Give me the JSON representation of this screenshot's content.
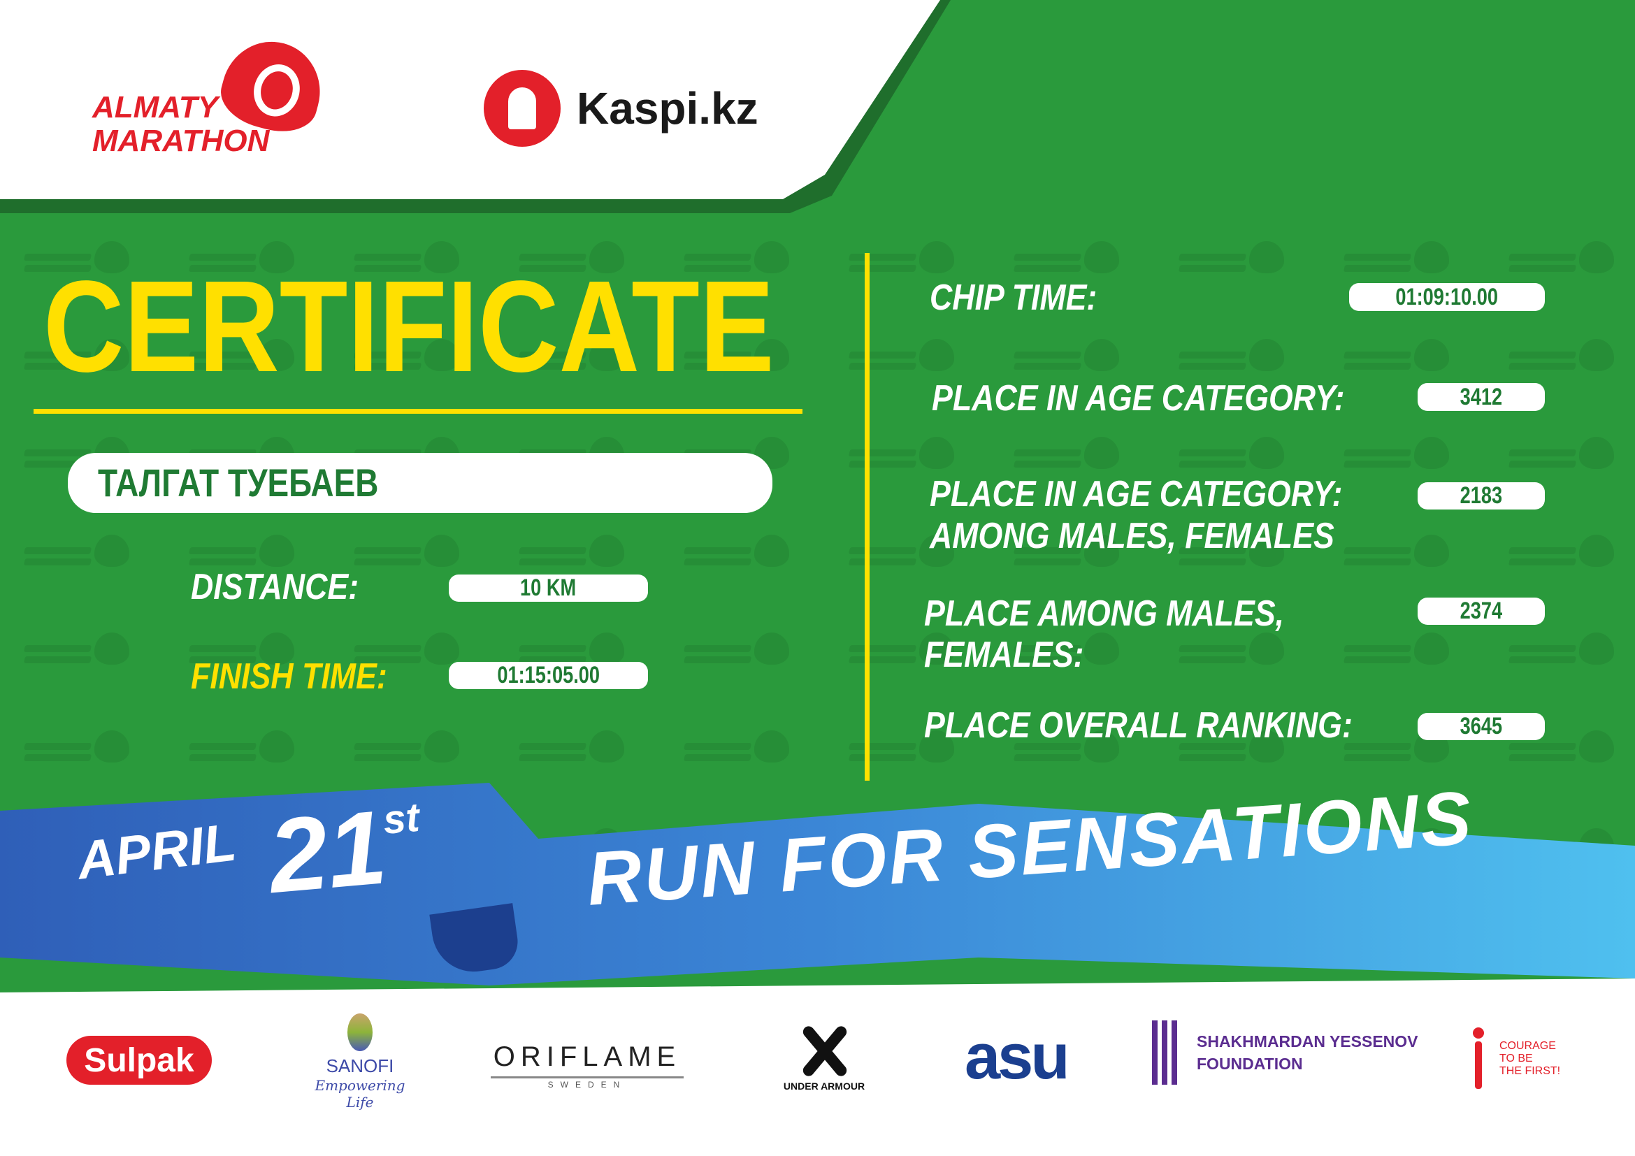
{
  "brand": {
    "event_logo_text": "ALMATY MARATHON",
    "sponsor_logo_text": "Kaspi.kz",
    "watermark_text": "ALMATY MARATHON"
  },
  "colors": {
    "green": "#2a9a3c",
    "yellow": "#ffe000",
    "red": "#e3202a",
    "blue": "#3b86d6"
  },
  "certificate": {
    "title": "CERTIFICATE",
    "name": "ТАЛГАТ ТУЕБАЕВ"
  },
  "left_stats": [
    {
      "label": "DISTANCE:",
      "value": "10 KM"
    },
    {
      "label": "FINISH TIME:",
      "value": "01:15:05.00"
    }
  ],
  "right_stats": [
    {
      "label": "CHIP TIME:",
      "value": "01:09:10.00"
    },
    {
      "label": "PLACE IN AGE CATEGORY:",
      "value": "3412"
    },
    {
      "label_line1": "PLACE IN AGE CATEGORY:",
      "label_line2": "AMONG MALES, FEMALES",
      "value": "2183"
    },
    {
      "label_line1": "PLACE AMONG MALES,",
      "label_line2": "FEMALES:",
      "value": "2374"
    },
    {
      "label": "PLACE OVERALL RANKING:",
      "value": "3645"
    }
  ],
  "banner": {
    "month": "APRIL",
    "day": "21",
    "suffix": "st",
    "slogan": "RUN FOR SENSATIONS"
  },
  "partners": {
    "sulpak": "Sulpak",
    "sanofi": "SANOFI",
    "sanofi_tagline": "Empowering Life",
    "oriflame": "ORIFLAME",
    "oriflame_sub": "SWEDEN",
    "under_armour": "UNDER ARMOUR",
    "asu": "asu",
    "yessenov_line1": "SHAKHMARDAN YESSENOV",
    "yessenov_line2": "FOUNDATION",
    "courage_line1": "COURAGE",
    "courage_line2": "TO BE",
    "courage_line3": "THE FIRST!"
  }
}
